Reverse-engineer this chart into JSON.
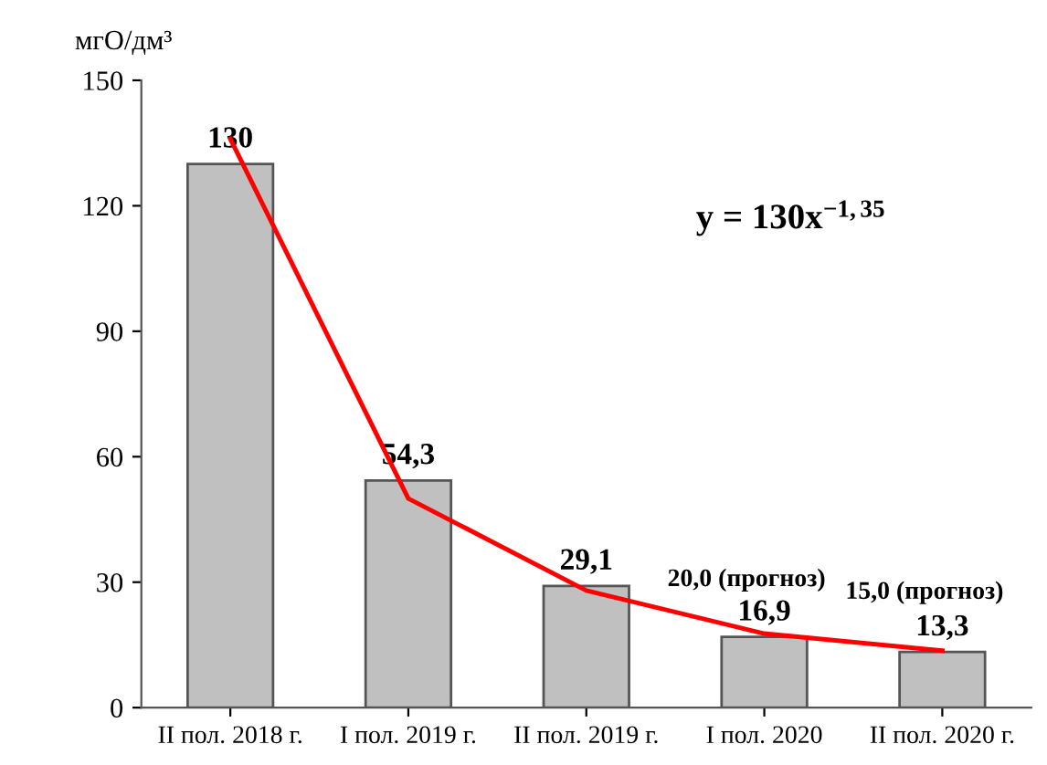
{
  "chart_data": {
    "type": "bar",
    "ylabel": "мгО/дм³",
    "categories": [
      "II пол. 2018 г.",
      "I пол. 2019 г.",
      "II пол. 2019 г.",
      "I пол. 2020",
      "II пол. 2020 г."
    ],
    "series": [
      {
        "color": "#c0c0c0",
        "values": [
          130,
          54.3,
          29.1,
          16.9,
          13.3
        ],
        "value_labels": [
          "130",
          "54,3",
          "29,1",
          "16,9",
          "13,3"
        ]
      },
      {
        "type": "line",
        "color": "#ff0000",
        "values": [
          136,
          50,
          28,
          17.7,
          13.6
        ]
      }
    ],
    "ylim": [
      0,
      150
    ],
    "yticks": [
      0,
      30,
      60,
      90,
      120,
      150
    ],
    "grid": false,
    "marker": "none",
    "line_style": "solid",
    "annotations": [
      "y = 130x$^{−1,35}$",
      "20,0 (прогноз)",
      "15,0 (прогноз)"
    ]
  }
}
